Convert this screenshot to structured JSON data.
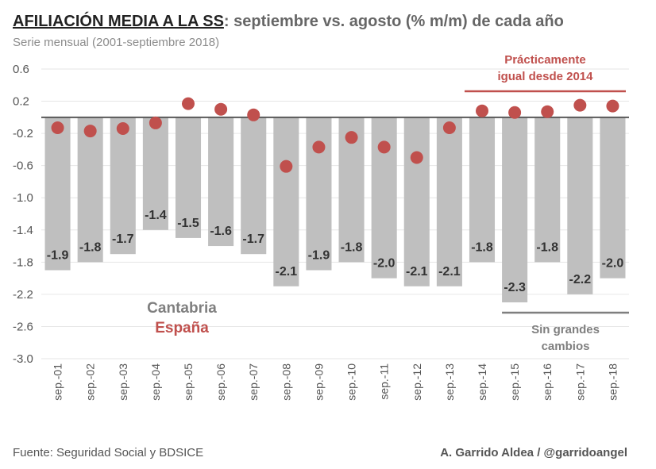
{
  "header": {
    "title_lead": "AFILIACIÓN MEDIA A LA SS",
    "title_rest": ": septiembre vs. agosto (% m/m) de cada año",
    "subtitle": "Serie mensual (2001-septiembre 2018)"
  },
  "footer": {
    "source": "Fuente: Seguridad Social y BDSICE",
    "author": "A. Garrido Aldea / @garridoangel"
  },
  "colors": {
    "bar": "#bfbfbf",
    "dot": "#c0504d",
    "annotation_red": "#c0504d",
    "annotation_gray": "#7f7f7f",
    "grid": "#e6e6e6"
  },
  "chart_data": {
    "type": "bar",
    "title": "AFILIACIÓN MEDIA A LA SS: septiembre vs. agosto (% m/m) de cada año",
    "subtitle": "Serie mensual (2001-septiembre 2018)",
    "xlabel": "",
    "ylabel": "",
    "ylim": [
      -3.0,
      0.6
    ],
    "yticks": [
      0.6,
      0.2,
      -0.2,
      -0.6,
      -1.0,
      -1.4,
      -1.8,
      -2.2,
      -2.6,
      -3.0
    ],
    "ytick_labels": [
      "0.6",
      "0.2",
      "-0.2",
      "-0.6",
      "-1.0",
      "-1.4",
      "-1.8",
      "-2.2",
      "-2.6",
      "-3.0"
    ],
    "grid": true,
    "categories": [
      "sep.-01",
      "sep.-02",
      "sep.-03",
      "sep.-04",
      "sep.-05",
      "sep.-06",
      "sep.-07",
      "sep.-08",
      "sep.-09",
      "sep.-10",
      "sep.-11",
      "sep.-12",
      "sep.-13",
      "sep.-14",
      "sep.-15",
      "sep.-16",
      "sep.-17",
      "sep.-18"
    ],
    "series": [
      {
        "name": "Cantabria",
        "type": "bar",
        "values": [
          -1.9,
          -1.8,
          -1.7,
          -1.4,
          -1.5,
          -1.6,
          -1.7,
          -2.1,
          -1.9,
          -1.8,
          -2.0,
          -2.1,
          -2.1,
          -1.8,
          -2.3,
          -1.8,
          -2.2,
          -2.0
        ],
        "labels": [
          "-1.9",
          "-1.8",
          "-1.7",
          "-1.4",
          "-1.5",
          "-1.6",
          "-1.7",
          "-2.1",
          "-1.9",
          "-1.8",
          "-2.0",
          "-2.1",
          "-2.1",
          "-1.8",
          "-2.3",
          "-1.8",
          "-2.2",
          "-2.0"
        ]
      },
      {
        "name": "España",
        "type": "scatter",
        "values": [
          -0.13,
          -0.17,
          -0.14,
          -0.07,
          0.17,
          0.1,
          0.03,
          -0.61,
          -0.37,
          -0.25,
          -0.37,
          -0.5,
          -0.13,
          0.08,
          0.06,
          0.07,
          0.15,
          0.14
        ]
      }
    ],
    "legend": [
      {
        "label": "Cantabria",
        "color": "#7f7f7f"
      },
      {
        "label": "España",
        "color": "#c0504d"
      }
    ],
    "legend_position": "bottom-left",
    "annotations": [
      {
        "text": [
          "Prácticamente",
          "igual desde 2014"
        ],
        "color": "#c0504d",
        "span": [
          "sep.-14",
          "sep.-18"
        ],
        "position": "top"
      },
      {
        "text": [
          "Sin grandes",
          "cambios"
        ],
        "color": "#7f7f7f",
        "span": [
          "sep.-15",
          "sep.-18"
        ],
        "position": "bottom"
      }
    ]
  }
}
